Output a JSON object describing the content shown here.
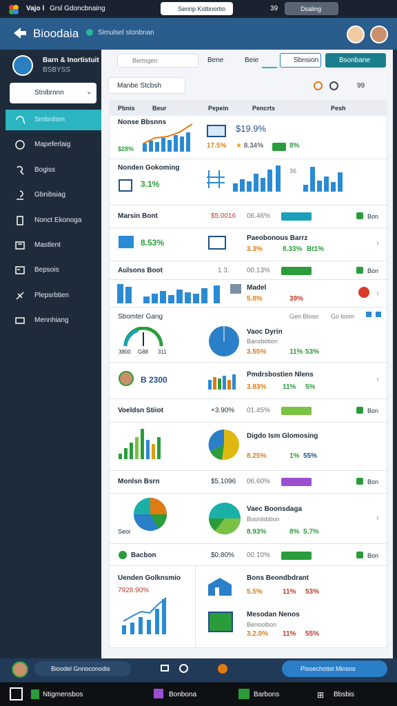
{
  "browser": {
    "app": "Vajo l",
    "tab": "Grsl Gdoncbnaing",
    "address": "Senrip Kstbnortio",
    "time": "39",
    "profile": "Dsaling"
  },
  "header": {
    "title": "Bioodaia",
    "badge": "Simulsel stonbnan"
  },
  "sidebar": {
    "user": "Barn & Inortistuit",
    "user_id": "BSBYSS",
    "select": "Stnibrnnn",
    "menu": [
      "Smbnlism",
      "Mapeferlaig",
      "Bogiss",
      "Gbnibsiag",
      "Nonct Ekonoga",
      "Mastlent",
      "Bepsois",
      "Plepsrbtien",
      "Mennhiang"
    ]
  },
  "toolbar": {
    "search": "Bertogen",
    "tab1": "Bene",
    "tab2": "Beie",
    "button1": "Sbnsion",
    "button2": "Bsonbane",
    "filter": "Manbe Stcbsh",
    "count": "99"
  },
  "table": {
    "headers": [
      "Pbnis",
      "Beur",
      "Pepein",
      "Pencrts",
      "Pesh"
    ],
    "rows": [
      {
        "title": "Nonse Bbsnns",
        "left_value": "$28%",
        "value": "$19.9%",
        "change": "17.5%",
        "rate": "8.34%",
        "share": "8%"
      },
      {
        "title": "Nonden Gokoming",
        "left_value": "3.1%",
        "axis": "36"
      },
      {
        "title": "Marsin Bont",
        "amount": "$5.0016",
        "rate": "06.46%",
        "action": "Bon"
      },
      {
        "left_value": "8.53%",
        "title": "Paeobonous Barrz",
        "change": "3.3%",
        "rate": "8.33%",
        "share": "Bt1%"
      },
      {
        "title": "Aulsons Boot",
        "amount": "1 3.",
        "rate": "00.13%",
        "action": "Bon"
      },
      {
        "title": "Madel",
        "change": "5.8%",
        "share": "39%"
      },
      {
        "title": "Sbomter Gang",
        "filter1": "Gen Bloso",
        "filter2": "Go loom"
      },
      {
        "gauge": [
          "3800",
          "G88",
          "311"
        ],
        "title": "Vaoc Dyrin",
        "subtitle": "Bansbotion",
        "change": "3.55%",
        "rate": "11%",
        "share": "53%"
      },
      {
        "left_value": "B 2300",
        "title": "Pmdrsbostien Nlens",
        "change": "3.83%",
        "rate": "11%",
        "share": "5%"
      },
      {
        "title": "Voeldsn Stiiot",
        "amount": "+3.90%",
        "rate": "01.45%",
        "action": "Bon"
      },
      {
        "title": "Digdo Ism Glomosing",
        "change": "8.25%",
        "rate": "1%",
        "share": "55%"
      },
      {
        "title": "Monlsn Bsrn",
        "amount": "$5.1096",
        "rate": "06.60%",
        "action": "Bon"
      },
      {
        "left_label": "Seoi",
        "title": "Vaec Boonsdaga",
        "subtitle": "Boonlsbbon",
        "change": "8.93%",
        "rate": "8%",
        "share": "5.7%"
      },
      {
        "title": "Bacbon",
        "amount": "$0.80%",
        "rate": "00.10%",
        "action": "Bon"
      },
      {
        "title": "Uenden Golknsmio",
        "left_value": "7928.90%",
        "item1": {
          "title": "Bons Beondbdrant",
          "change": "5.5%",
          "rate": "11%",
          "share": "53%"
        },
        "item2": {
          "title": "Mesodan Nenos",
          "subtitle": "Benoolbon",
          "change": "3.2.0%",
          "rate": "11%",
          "share": "55%"
        }
      }
    ]
  },
  "footer": {
    "status": "Bioodel Gnnoconodis",
    "action": "Pisoechotist Minsns"
  },
  "taskbar": [
    "Ntigmensbos",
    "Bonbona",
    "Barbons",
    "Bbsbis"
  ]
}
